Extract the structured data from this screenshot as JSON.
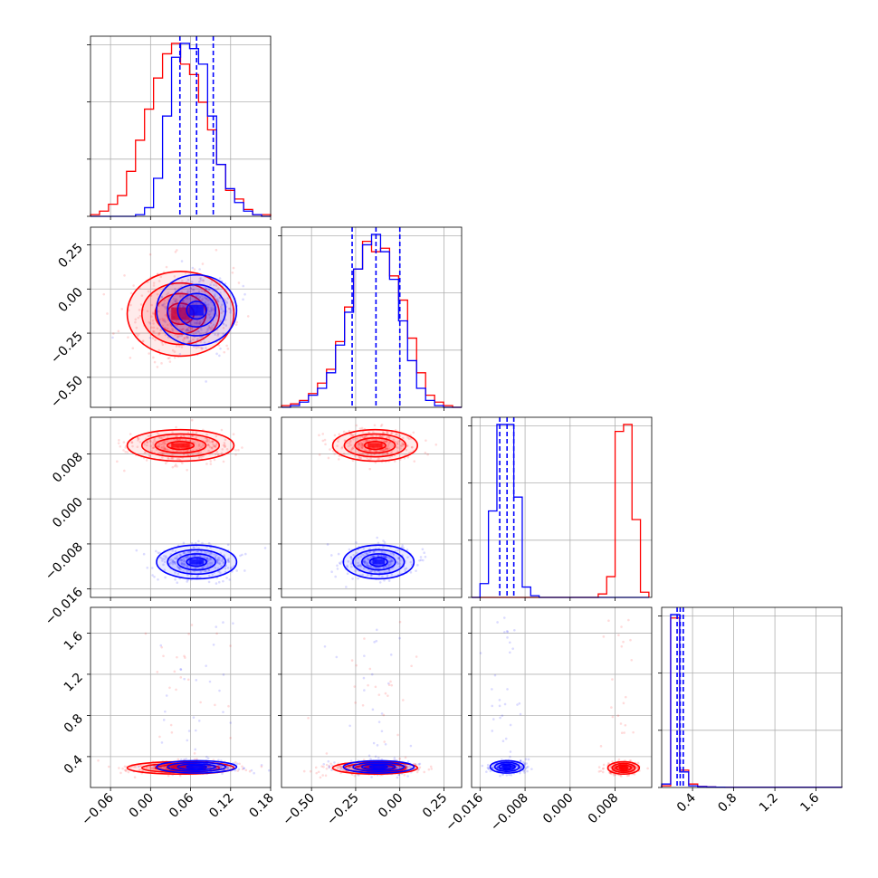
{
  "figure": {
    "title": ""
  },
  "chart_data": {
    "type": "corner",
    "grid": true,
    "colors": {
      "series_a": "#0000ff",
      "series_b": "#ff0000",
      "grid": "#b0b0b0",
      "axis": "#000000"
    },
    "series": [
      {
        "color": "#0000ff",
        "means": [
          0.069,
          -0.12,
          -0.0112,
          0.3
        ],
        "sds": [
          0.03,
          0.1,
          0.0015,
          0.03
        ],
        "quantiles": [
          [
            0.044,
            0.069,
            0.094
          ],
          [
            -0.27,
            -0.135,
            0.0
          ],
          [
            -0.0125,
            -0.0112,
            -0.01
          ],
          [
            0.25,
            0.28,
            0.31
          ]
        ]
      },
      {
        "color": "#ff0000",
        "means": [
          0.045,
          -0.14,
          0.0095,
          0.29
        ],
        "sds": [
          0.04,
          0.12,
          0.0014,
          0.03
        ],
        "quantiles": [
          [],
          [],
          [],
          []
        ]
      }
    ],
    "params": [
      {
        "range": [
          -0.09,
          0.18
        ],
        "ticks": [
          -0.06,
          0.0,
          0.06,
          0.12,
          0.18
        ],
        "tick_labels": [
          "−0.06",
          "0.00",
          "0.06",
          "0.12",
          "0.18"
        ]
      },
      {
        "range": [
          -0.67,
          0.35
        ],
        "ticks": [
          -0.5,
          -0.25,
          0.0,
          0.25
        ],
        "tick_labels": [
          "−0.50",
          "−0.25",
          "0.00",
          "0.25"
        ]
      },
      {
        "range": [
          -0.0175,
          0.0145
        ],
        "ticks": [
          -0.016,
          -0.008,
          0.0,
          0.008
        ],
        "tick_labels": [
          "−0.016",
          "−0.008",
          "0.000",
          "0.008"
        ]
      },
      {
        "range": [
          0.1,
          1.85
        ],
        "ticks": [
          0.4,
          0.8,
          1.2,
          1.6
        ],
        "tick_labels": [
          "0.4",
          "0.8",
          "1.2",
          "1.6"
        ]
      }
    ],
    "histograms": [
      {
        "bin_edges": [
          -0.09,
          -0.0765,
          -0.063,
          -0.0495,
          -0.036,
          -0.0225,
          -0.009,
          0.0045,
          0.018,
          0.0315,
          0.045,
          0.0585,
          0.072,
          0.0855,
          0.099,
          0.1125,
          0.126,
          0.1395,
          0.153,
          0.1665,
          0.18
        ],
        "blue": [
          0,
          0,
          0,
          0,
          0,
          1,
          5,
          22,
          58,
          92,
          100,
          97,
          88,
          58,
          30,
          16,
          8,
          3,
          1,
          0
        ],
        "red": [
          1,
          3,
          7,
          12,
          26,
          44,
          62,
          80,
          94,
          100,
          88,
          82,
          66,
          50,
          30,
          15,
          10,
          4,
          1,
          1
        ]
      },
      {
        "bin_edges": [
          -0.67,
          -0.619,
          -0.568,
          -0.517,
          -0.466,
          -0.415,
          -0.364,
          -0.313,
          -0.262,
          -0.211,
          -0.16,
          -0.109,
          -0.058,
          -0.007,
          0.044,
          0.095,
          0.146,
          0.197,
          0.248,
          0.299,
          0.35
        ],
        "blue": [
          0,
          1,
          3,
          7,
          11,
          20,
          36,
          55,
          80,
          94,
          100,
          90,
          74,
          50,
          27,
          11,
          4,
          1,
          0,
          0
        ],
        "red": [
          1,
          2,
          4,
          8,
          14,
          22,
          38,
          58,
          80,
          96,
          90,
          92,
          76,
          62,
          40,
          20,
          7,
          3,
          1,
          0
        ]
      },
      {
        "bin_edges": [
          -0.0175,
          -0.016,
          -0.0145,
          -0.013,
          -0.0115,
          -0.01,
          -0.0085,
          -0.007,
          -0.0055,
          -0.004,
          -0.0025,
          -0.001,
          0.0005,
          0.002,
          0.0035,
          0.005,
          0.0065,
          0.008,
          0.0095,
          0.011,
          0.0125,
          0.014
        ],
        "blue": [
          0,
          8,
          50,
          100,
          100,
          58,
          6,
          1,
          0,
          0,
          0,
          0,
          0,
          0,
          0,
          0,
          0,
          0,
          0,
          0,
          0
        ],
        "red": [
          0,
          0,
          0,
          0,
          0,
          0,
          0,
          0,
          0,
          0,
          0,
          0,
          0,
          0,
          0,
          2,
          12,
          96,
          100,
          45,
          3
        ]
      },
      {
        "bin_edges": [
          0.1,
          0.1875,
          0.275,
          0.3625,
          0.45,
          0.5375,
          0.625,
          0.7125,
          0.8,
          0.8875,
          0.975,
          1.0625,
          1.15,
          1.2375,
          1.325,
          1.4125,
          1.5,
          1.5875,
          1.675,
          1.7625,
          1.85
        ],
        "blue": [
          2,
          100,
          9,
          1,
          0.5,
          0.3,
          0.2,
          0.1,
          0.1,
          0.1,
          0.1,
          0.1,
          0.1,
          0.1,
          0.1,
          0.1,
          0.1,
          0.1,
          0.1,
          0.1
        ],
        "red": [
          1,
          98,
          10,
          2,
          0.6,
          0.3,
          0.2,
          0.1,
          0.1,
          0.1,
          0.1,
          0.1,
          0.1,
          0.1,
          0.1,
          0.1,
          0.1,
          0.1,
          0.1,
          0.1
        ]
      }
    ]
  }
}
